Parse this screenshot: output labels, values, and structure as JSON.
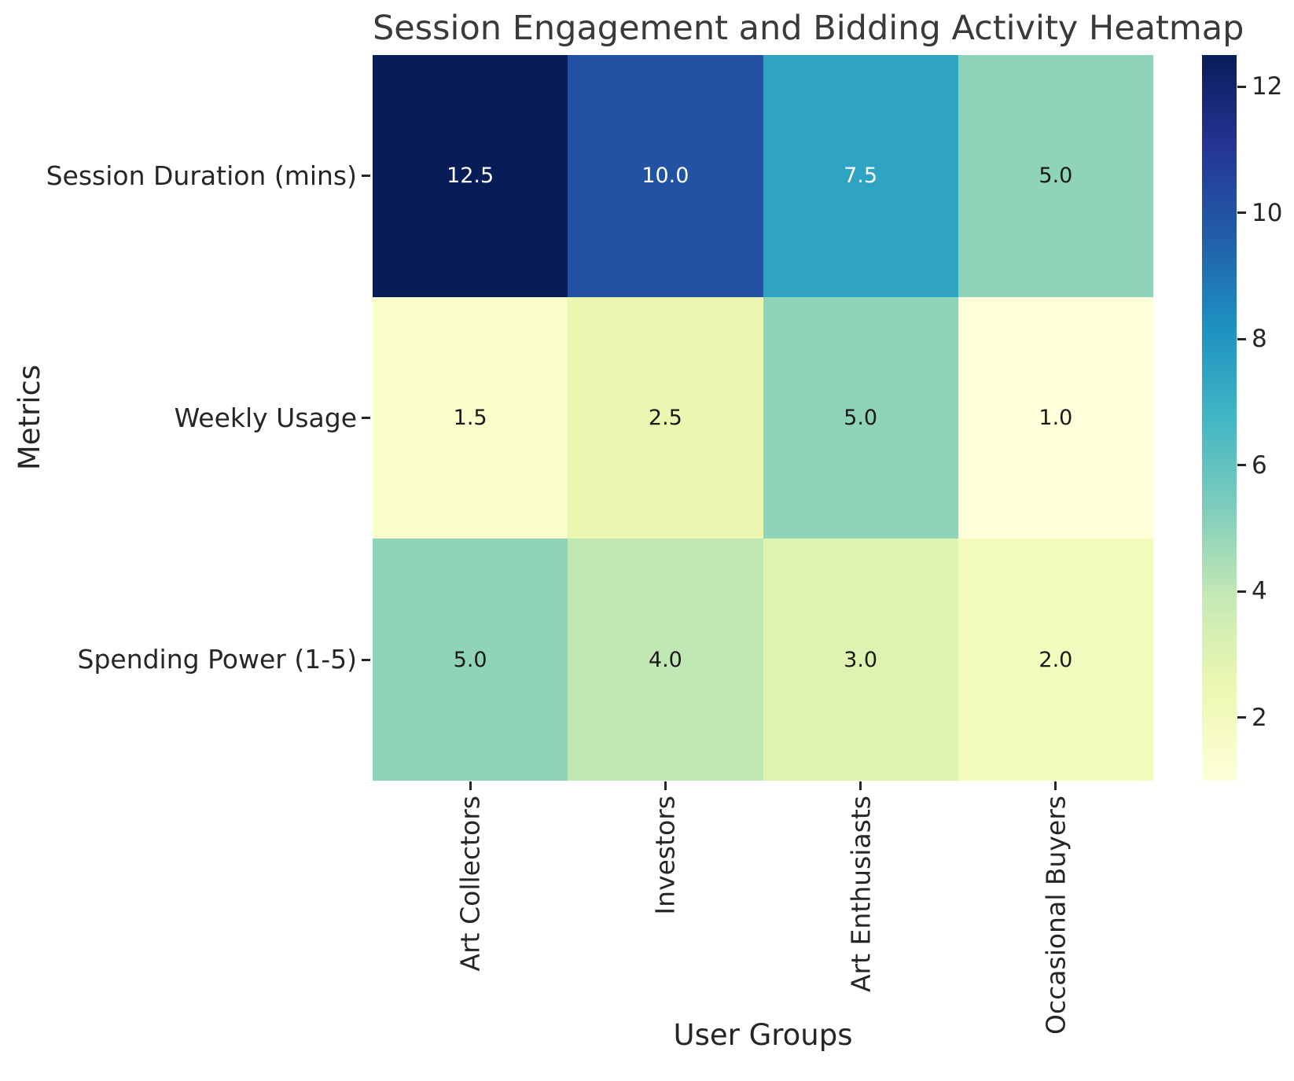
{
  "chart_data": {
    "type": "heatmap",
    "title": "Session Engagement and Bidding Activity Heatmap",
    "xlabel": "User Groups",
    "ylabel": "Metrics",
    "columns": [
      "Art Collectors",
      "Investors",
      "Art Enthusiasts",
      "Occasional Buyers"
    ],
    "rows": [
      "Session Duration (mins)",
      "Weekly Usage",
      "Spending Power (1-5)"
    ],
    "values": [
      [
        12.5,
        10.0,
        7.5,
        5.0
      ],
      [
        1.5,
        2.5,
        5.0,
        1.0
      ],
      [
        5.0,
        4.0,
        3.0,
        2.0
      ]
    ],
    "cell_labels": [
      [
        "12.5",
        "10.0",
        "7.5",
        "5.0"
      ],
      [
        "1.5",
        "2.5",
        "5.0",
        "1.0"
      ],
      [
        "5.0",
        "4.0",
        "3.0",
        "2.0"
      ]
    ],
    "cell_colors": [
      [
        "#081d58",
        "#2253a3",
        "#2ea3c2",
        "#8fd3b9"
      ],
      [
        "#f9fdcb",
        "#ebf7b1",
        "#8fd3b9",
        "#ffffd9"
      ],
      [
        "#8fd3b9",
        "#c1e7b5",
        "#def2b2",
        "#f2fabd"
      ]
    ],
    "cell_text_colors": [
      [
        "#ffffff",
        "#ffffff",
        "#ffffff",
        "#1a1a1a"
      ],
      [
        "#1a1a1a",
        "#1a1a1a",
        "#1a1a1a",
        "#1a1a1a"
      ],
      [
        "#1a1a1a",
        "#1a1a1a",
        "#1a1a1a",
        "#1a1a1a"
      ]
    ],
    "colormap": "YlGnBu",
    "colorbar": {
      "vmin": 1.0,
      "vmax": 12.5,
      "ticks": [
        2,
        4,
        6,
        8,
        10,
        12
      ],
      "gradient_stops": [
        [
          "#ffffd9",
          0
        ],
        [
          "#edf8b1",
          12.5
        ],
        [
          "#c7e9b4",
          25
        ],
        [
          "#7fcdbb",
          37.5
        ],
        [
          "#41b6c4",
          50
        ],
        [
          "#1d91c0",
          62.5
        ],
        [
          "#225ea8",
          75
        ],
        [
          "#253494",
          87.5
        ],
        [
          "#081d58",
          100
        ]
      ],
      "position": "right"
    },
    "grid": false,
    "background": "#ffffff",
    "axis_text_color": "#262626",
    "title_color": "#3a3a3a"
  }
}
